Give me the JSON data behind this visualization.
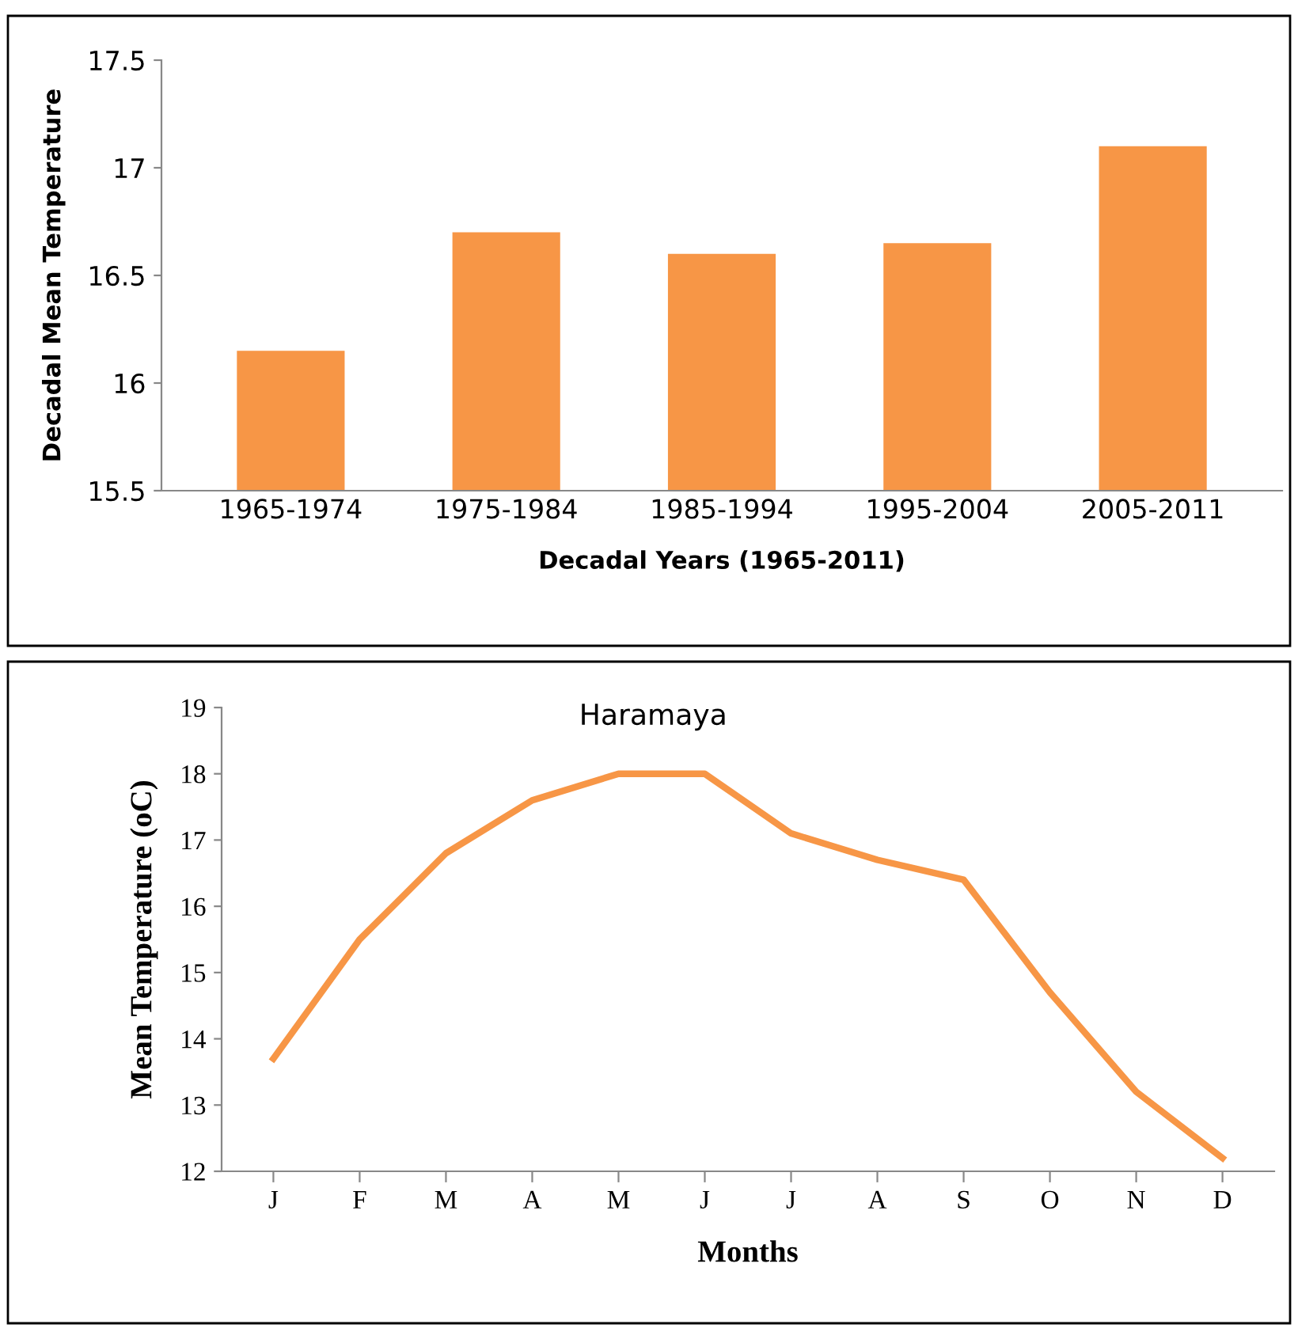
{
  "chart_data": [
    {
      "type": "bar",
      "xlabel": "Decadal Years (1965-2011)",
      "ylabel": "Decadal Mean Temperature",
      "categories": [
        "1965-1974",
        "1975-1984",
        "1985-1994",
        "1995-2004",
        "2005-2011"
      ],
      "values": [
        16.15,
        16.7,
        16.6,
        16.65,
        17.1
      ],
      "color": "#f79646",
      "ylim": [
        15.5,
        17.5
      ],
      "yticks": [
        15.5,
        16,
        16.5,
        17,
        17.5
      ],
      "grid": false,
      "legend": false
    },
    {
      "type": "line",
      "title": "Haramaya",
      "xlabel": "Months",
      "ylabel": "Mean Temperature (oC)",
      "categories": [
        "J",
        "F",
        "M",
        "A",
        "M",
        "J",
        "J",
        "A",
        "S",
        "O",
        "N",
        "D"
      ],
      "values": [
        13.7,
        15.5,
        16.8,
        17.6,
        18.0,
        18.0,
        17.1,
        16.7,
        16.4,
        14.7,
        13.2,
        12.2
      ],
      "color": "#f79646",
      "ylim": [
        12,
        19
      ],
      "yticks": [
        12,
        13,
        14,
        15,
        16,
        17,
        18,
        19
      ],
      "grid": false,
      "legend": false,
      "marker": "none",
      "line_style": "solid"
    }
  ]
}
